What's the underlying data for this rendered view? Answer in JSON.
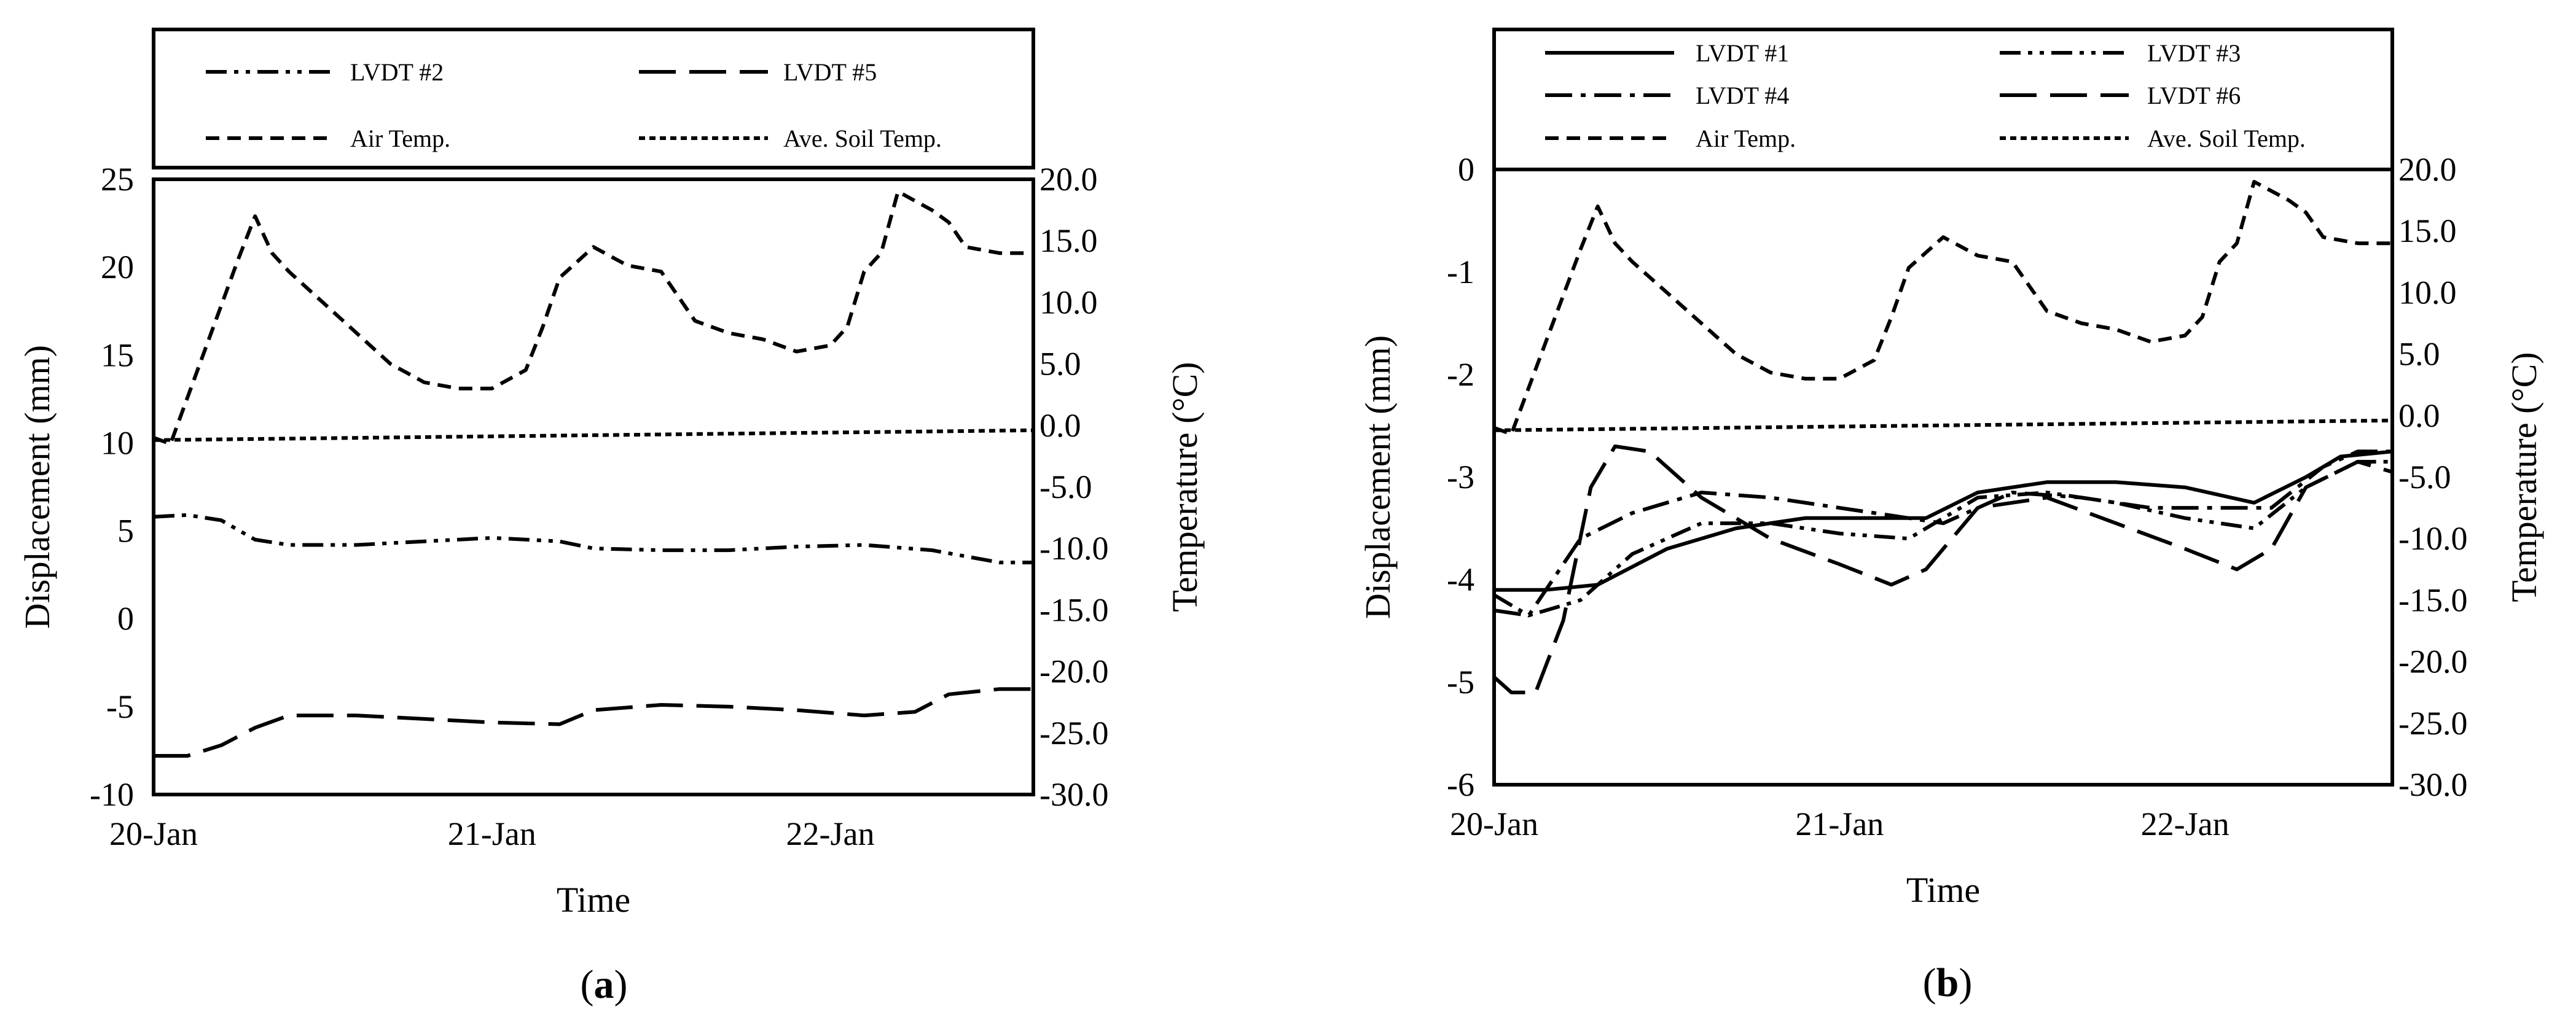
{
  "chart_data": [
    {
      "panel_label": "a",
      "type": "line",
      "xlabel": "Time",
      "ylabel": "Displacement (mm)",
      "y2label": "Temperature (°C)",
      "xlim": [
        0,
        2.6
      ],
      "xticks": [
        {
          "x": 0,
          "label": "20-Jan"
        },
        {
          "x": 1,
          "label": "21-Jan"
        },
        {
          "x": 2,
          "label": "22-Jan"
        }
      ],
      "ylim": [
        -10,
        25
      ],
      "yticks": [
        {
          "v": 25,
          "label": "25"
        },
        {
          "v": 20,
          "label": "20"
        },
        {
          "v": 15,
          "label": "15"
        },
        {
          "v": 10,
          "label": "10"
        },
        {
          "v": 5,
          "label": "5"
        },
        {
          "v": 0,
          "label": "0"
        },
        {
          "v": -5,
          "label": "-5"
        },
        {
          "v": -10,
          "label": "-10"
        }
      ],
      "y2lim": [
        -30,
        20
      ],
      "y2ticks": [
        {
          "v": 20,
          "label": "20.0"
        },
        {
          "v": 15,
          "label": "15.0"
        },
        {
          "v": 10,
          "label": "10.0"
        },
        {
          "v": 5,
          "label": "5.0"
        },
        {
          "v": 0,
          "label": "0.0"
        },
        {
          "v": -5,
          "label": "-5.0"
        },
        {
          "v": -10,
          "label": "-10.0"
        },
        {
          "v": -15,
          "label": "-15.0"
        },
        {
          "v": -20,
          "label": "-20.0"
        },
        {
          "v": -25,
          "label": "-25.0"
        },
        {
          "v": -30,
          "label": "-30.0"
        }
      ],
      "legend": [
        {
          "name": "LVDT #2",
          "style": "dashdotdot"
        },
        {
          "name": "LVDT #5",
          "style": "longdash"
        },
        {
          "name": "Air Temp.",
          "style": "dash"
        },
        {
          "name": "Ave. Soil Temp.",
          "style": "shortdash"
        }
      ],
      "series": [
        {
          "name": "LVDT #2",
          "axis": "left",
          "style": "dashdotdot",
          "x": [
            0,
            0.1,
            0.2,
            0.3,
            0.4,
            0.6,
            0.8,
            1.0,
            1.2,
            1.3,
            1.5,
            1.7,
            1.9,
            2.1,
            2.3,
            2.5,
            2.6
          ],
          "y": [
            5.8,
            5.9,
            5.6,
            4.5,
            4.2,
            4.2,
            4.4,
            4.6,
            4.4,
            4.0,
            3.9,
            3.9,
            4.1,
            4.2,
            3.9,
            3.2,
            3.2
          ]
        },
        {
          "name": "LVDT #5",
          "axis": "left",
          "style": "longdash",
          "x": [
            0,
            0.1,
            0.2,
            0.3,
            0.4,
            0.6,
            0.8,
            1.0,
            1.2,
            1.3,
            1.5,
            1.7,
            1.9,
            2.1,
            2.25,
            2.35,
            2.5,
            2.6
          ],
          "y": [
            -7.8,
            -7.8,
            -7.2,
            -6.2,
            -5.5,
            -5.5,
            -5.7,
            -5.9,
            -6.0,
            -5.2,
            -4.9,
            -5.0,
            -5.2,
            -5.5,
            -5.3,
            -4.3,
            -4.0,
            -4.0
          ]
        },
        {
          "name": "Air Temp.",
          "axis": "right",
          "style": "dash",
          "x": [
            0,
            0.05,
            0.15,
            0.25,
            0.3,
            0.35,
            0.4,
            0.5,
            0.6,
            0.7,
            0.8,
            0.9,
            1.0,
            1.1,
            1.15,
            1.2,
            1.3,
            1.4,
            1.5,
            1.6,
            1.7,
            1.8,
            1.9,
            2.0,
            2.05,
            2.1,
            2.15,
            2.2,
            2.3,
            2.35,
            2.4,
            2.5,
            2.6
          ],
          "y": [
            -1.0,
            -1.5,
            6.0,
            13.5,
            17.0,
            14.0,
            12.5,
            10.0,
            7.5,
            5.0,
            3.5,
            3.0,
            3.0,
            4.5,
            8.0,
            12.0,
            14.5,
            13.0,
            12.5,
            8.5,
            7.5,
            7.0,
            6.0,
            6.5,
            8.0,
            12.5,
            14.0,
            19.0,
            17.5,
            16.5,
            14.5,
            14.0,
            14.0
          ]
        },
        {
          "name": "Ave. Soil Temp.",
          "axis": "right",
          "style": "shortdash",
          "x": [
            0,
            0.65,
            1.3,
            1.95,
            2.6
          ],
          "y": [
            -1.2,
            -1.0,
            -0.8,
            -0.6,
            -0.4
          ]
        }
      ]
    },
    {
      "panel_label": "b",
      "type": "line",
      "xlabel": "Time",
      "ylabel": "Displacement (mm)",
      "y2label": "Temperature (°C)",
      "xlim": [
        0,
        2.6
      ],
      "xticks": [
        {
          "x": 0,
          "label": "20-Jan"
        },
        {
          "x": 1,
          "label": "21-Jan"
        },
        {
          "x": 2,
          "label": "22-Jan"
        }
      ],
      "ylim": [
        -6,
        0
      ],
      "yticks": [
        {
          "v": 0,
          "label": "0"
        },
        {
          "v": -1,
          "label": "-1"
        },
        {
          "v": -2,
          "label": "-2"
        },
        {
          "v": -3,
          "label": "-3"
        },
        {
          "v": -4,
          "label": "-4"
        },
        {
          "v": -5,
          "label": "-5"
        },
        {
          "v": -6,
          "label": "-6"
        }
      ],
      "y2lim": [
        -30,
        20
      ],
      "y2ticks": [
        {
          "v": 20,
          "label": "20.0"
        },
        {
          "v": 15,
          "label": "15.0"
        },
        {
          "v": 10,
          "label": "10.0"
        },
        {
          "v": 5,
          "label": "5.0"
        },
        {
          "v": 0,
          "label": "0.0"
        },
        {
          "v": -5,
          "label": "-5.0"
        },
        {
          "v": -10,
          "label": "-10.0"
        },
        {
          "v": -15,
          "label": "-15.0"
        },
        {
          "v": -20,
          "label": "-20.0"
        },
        {
          "v": -25,
          "label": "-25.0"
        },
        {
          "v": -30,
          "label": "-30.0"
        }
      ],
      "legend": [
        {
          "name": "LVDT #1",
          "style": "solid"
        },
        {
          "name": "LVDT #3",
          "style": "dashdotdot"
        },
        {
          "name": "LVDT #4",
          "style": "dashdot"
        },
        {
          "name": "LVDT #6",
          "style": "longdash"
        },
        {
          "name": "Air Temp.",
          "style": "dash"
        },
        {
          "name": "Ave. Soil Temp.",
          "style": "shortdash"
        }
      ],
      "series": [
        {
          "name": "LVDT #1",
          "axis": "left",
          "style": "solid",
          "x": [
            0,
            0.15,
            0.3,
            0.5,
            0.7,
            0.9,
            1.1,
            1.25,
            1.4,
            1.6,
            1.8,
            2.0,
            2.2,
            2.35,
            2.45,
            2.6
          ],
          "y": [
            -4.1,
            -4.1,
            -4.05,
            -3.7,
            -3.5,
            -3.4,
            -3.4,
            -3.4,
            -3.15,
            -3.05,
            -3.05,
            -3.1,
            -3.25,
            -3.0,
            -2.8,
            -2.75
          ]
        },
        {
          "name": "LVDT #3",
          "axis": "left",
          "style": "dashdotdot",
          "x": [
            0,
            0.1,
            0.25,
            0.4,
            0.6,
            0.8,
            1.0,
            1.2,
            1.3,
            1.4,
            1.6,
            1.8,
            2.0,
            2.2,
            2.35,
            2.5,
            2.6
          ],
          "y": [
            -4.15,
            -4.35,
            -4.2,
            -3.75,
            -3.45,
            -3.45,
            -3.55,
            -3.6,
            -3.4,
            -3.2,
            -3.15,
            -3.25,
            -3.4,
            -3.5,
            -3.1,
            -2.85,
            -2.85
          ]
        },
        {
          "name": "LVDT #4",
          "axis": "left",
          "style": "dashdot",
          "x": [
            0,
            0.1,
            0.25,
            0.4,
            0.6,
            0.8,
            1.0,
            1.2,
            1.3,
            1.5,
            1.7,
            1.9,
            2.1,
            2.25,
            2.4,
            2.5,
            2.6
          ],
          "y": [
            -4.3,
            -4.35,
            -3.6,
            -3.35,
            -3.15,
            -3.2,
            -3.3,
            -3.4,
            -3.45,
            -3.15,
            -3.2,
            -3.3,
            -3.3,
            -3.3,
            -2.9,
            -2.75,
            -2.75
          ]
        },
        {
          "name": "LVDT #6",
          "axis": "left",
          "style": "longdash",
          "x": [
            0,
            0.05,
            0.12,
            0.2,
            0.28,
            0.35,
            0.45,
            0.6,
            0.8,
            1.0,
            1.15,
            1.25,
            1.4,
            1.6,
            1.8,
            2.0,
            2.15,
            2.25,
            2.35,
            2.5,
            2.6
          ],
          "y": [
            -4.95,
            -5.1,
            -5.1,
            -4.4,
            -3.1,
            -2.7,
            -2.75,
            -3.2,
            -3.6,
            -3.85,
            -4.05,
            -3.9,
            -3.3,
            -3.2,
            -3.45,
            -3.7,
            -3.9,
            -3.7,
            -3.1,
            -2.85,
            -2.95
          ]
        },
        {
          "name": "Air Temp.",
          "axis": "right",
          "style": "dash",
          "x": [
            0,
            0.05,
            0.15,
            0.25,
            0.3,
            0.35,
            0.4,
            0.5,
            0.6,
            0.7,
            0.8,
            0.9,
            1.0,
            1.1,
            1.15,
            1.2,
            1.3,
            1.4,
            1.5,
            1.6,
            1.7,
            1.8,
            1.9,
            2.0,
            2.05,
            2.1,
            2.15,
            2.2,
            2.3,
            2.35,
            2.4,
            2.5,
            2.6
          ],
          "y": [
            -1.0,
            -1.5,
            6.0,
            13.5,
            17.0,
            14.0,
            12.5,
            10.0,
            7.5,
            5.0,
            3.5,
            3.0,
            3.0,
            4.5,
            8.0,
            12.0,
            14.5,
            13.0,
            12.5,
            8.5,
            7.5,
            7.0,
            6.0,
            6.5,
            8.0,
            12.5,
            14.0,
            19.0,
            17.5,
            16.5,
            14.5,
            14.0,
            14.0
          ]
        },
        {
          "name": "Ave. Soil Temp.",
          "axis": "right",
          "style": "shortdash",
          "x": [
            0,
            0.65,
            1.3,
            1.95,
            2.6
          ],
          "y": [
            -1.2,
            -1.0,
            -0.8,
            -0.6,
            -0.4
          ]
        }
      ]
    }
  ]
}
